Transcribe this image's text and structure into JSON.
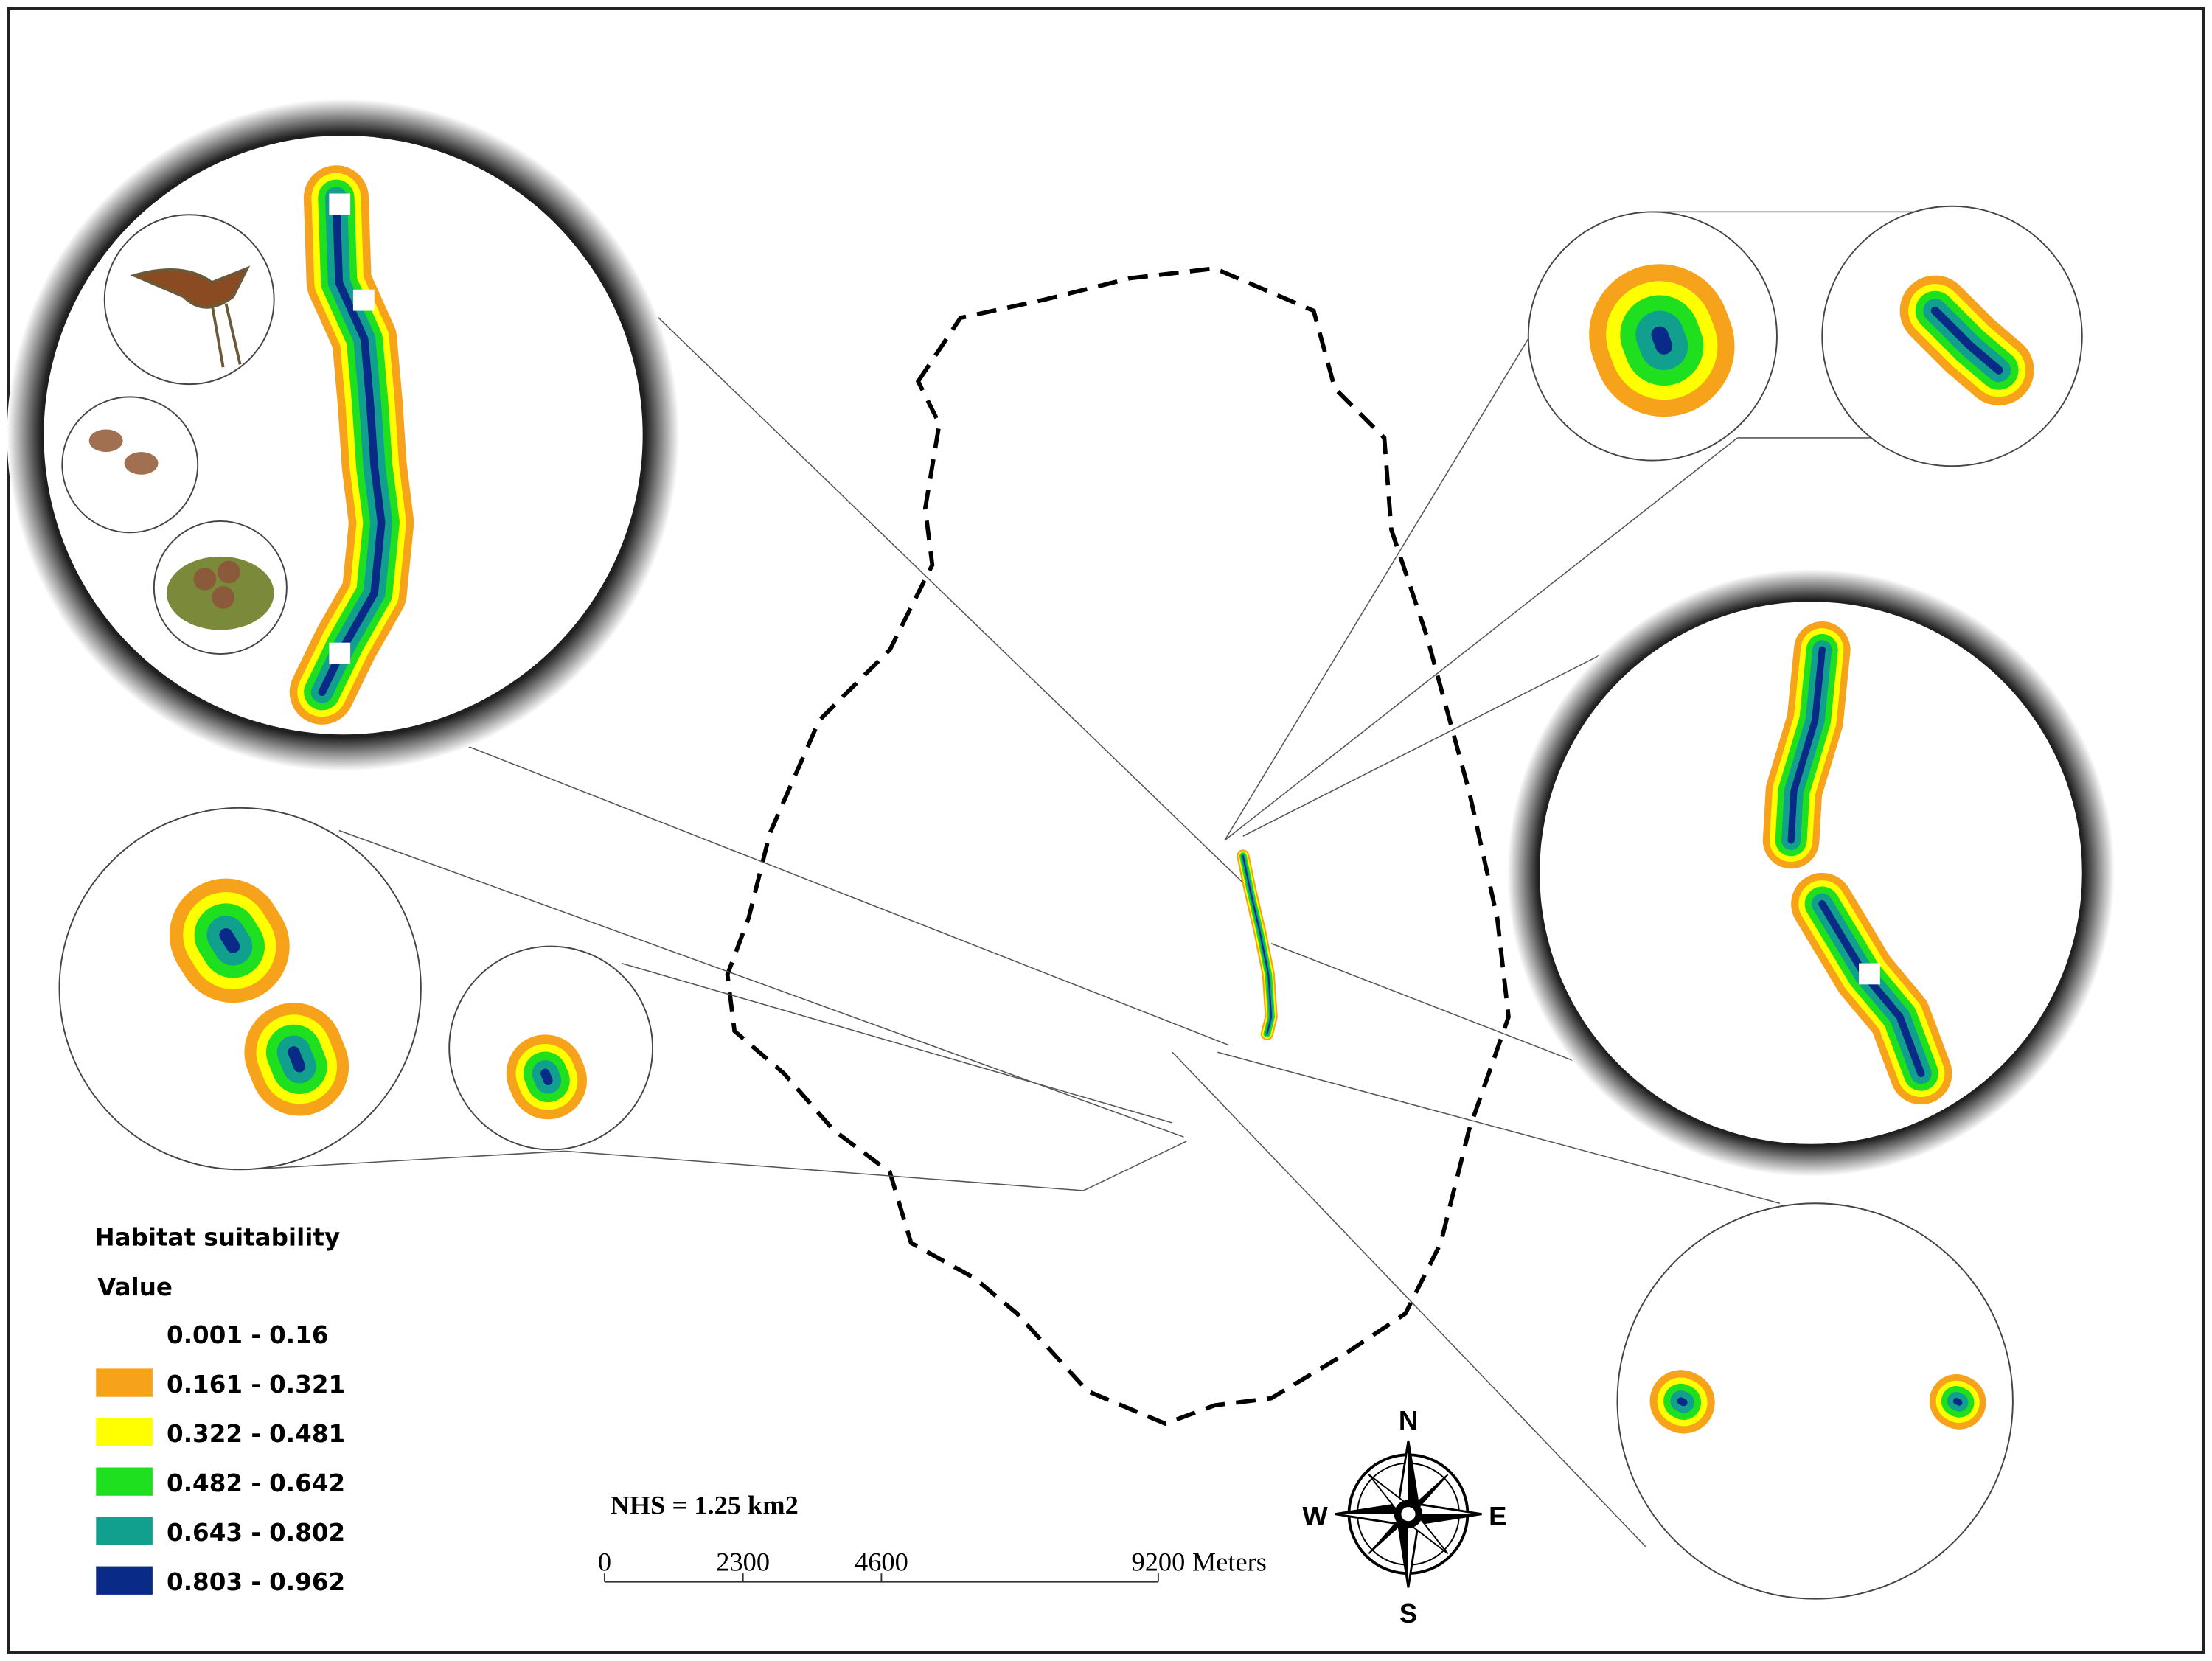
{
  "legend": {
    "title": "Habitat suitability",
    "subtitle": "Value",
    "items": [
      {
        "label": "0.001 - 0.16",
        "color": "#ffffff"
      },
      {
        "label": "0.161 - 0.321",
        "color": "#f7a21b"
      },
      {
        "label": "0.322 - 0.481",
        "color": "#ffff00"
      },
      {
        "label": "0.482 - 0.642",
        "color": "#1ee01e"
      },
      {
        "label": "0.643 - 0.802",
        "color": "#12a08e"
      },
      {
        "label": "0.803 - 0.962",
        "color": "#0a2a88"
      }
    ]
  },
  "annotation": "NHS = 1.25 km2",
  "scale_bar": {
    "ticks": [
      0,
      2300,
      4600,
      9200
    ],
    "unit": "Meters"
  },
  "compass": {
    "north": "N",
    "south": "S",
    "east": "E",
    "west": "W"
  }
}
